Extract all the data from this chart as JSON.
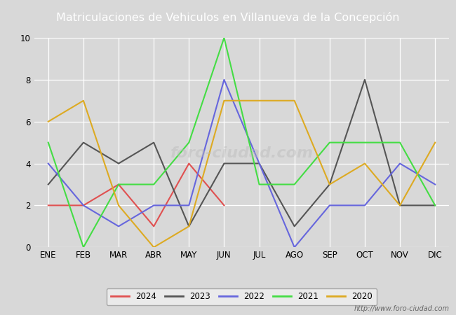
{
  "title": "Matriculaciones de Vehiculos en Villanueva de la Concepción",
  "title_color": "#ffffff",
  "title_bg_color": "#4472c4",
  "months": [
    "ENE",
    "FEB",
    "MAR",
    "ABR",
    "MAY",
    "JUN",
    "JUL",
    "AGO",
    "SEP",
    "OCT",
    "NOV",
    "DIC"
  ],
  "series": {
    "2024": {
      "color": "#e05050",
      "data": [
        2,
        2,
        3,
        1,
        4,
        2,
        null,
        null,
        null,
        null,
        null,
        null
      ]
    },
    "2023": {
      "color": "#555555",
      "data": [
        3,
        5,
        4,
        5,
        1,
        4,
        4,
        1,
        3,
        8,
        2,
        2
      ]
    },
    "2022": {
      "color": "#6666dd",
      "data": [
        4,
        2,
        1,
        2,
        2,
        8,
        4,
        0,
        2,
        2,
        4,
        3
      ]
    },
    "2021": {
      "color": "#44dd44",
      "data": [
        5,
        0,
        3,
        3,
        5,
        10,
        3,
        3,
        5,
        5,
        5,
        2
      ]
    },
    "2020": {
      "color": "#ddaa22",
      "data": [
        6,
        7,
        2,
        0,
        1,
        7,
        7,
        7,
        3,
        4,
        2,
        5
      ]
    }
  },
  "ylim": [
    0,
    10
  ],
  "yticks": [
    0,
    2,
    4,
    6,
    8,
    10
  ],
  "fig_bg_color": "#d8d8d8",
  "plot_bg_color": "#d8d8d8",
  "grid_color": "#ffffff",
  "watermark": "http://www.foro-ciudad.com",
  "legend_years": [
    "2024",
    "2023",
    "2022",
    "2021",
    "2020"
  ]
}
